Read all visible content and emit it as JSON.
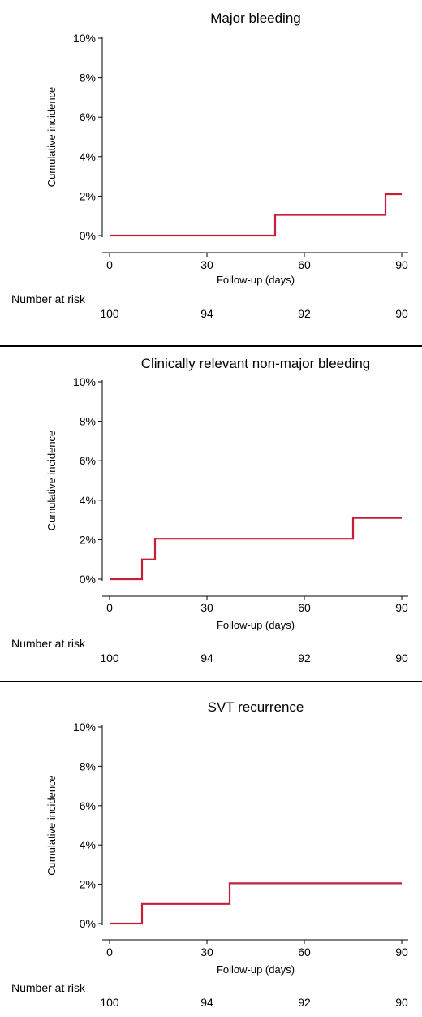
{
  "chart_data": [
    {
      "type": "line",
      "title": "Major bleeding",
      "xlabel": "Follow-up (days)",
      "ylabel": "Cumulative incidence",
      "xlim": [
        0,
        90
      ],
      "ylim": [
        0,
        10
      ],
      "x_ticks": [
        "0",
        "30",
        "60",
        "90"
      ],
      "y_ticks": [
        "0%",
        "2%",
        "4%",
        "6%",
        "8%",
        "10%"
      ],
      "grid": false,
      "series": [
        {
          "color": "#c41e3a",
          "step": true,
          "x": [
            0,
            51,
            51,
            85,
            85,
            90
          ],
          "y": [
            0,
            0,
            1.05,
            1.05,
            2.1,
            2.1
          ]
        }
      ],
      "risk_table": {
        "label": "Number at risk",
        "values": [
          "100",
          "94",
          "92",
          "90"
        ]
      }
    },
    {
      "type": "line",
      "title": "Clinically relevant non-major bleeding",
      "xlabel": "Follow-up (days)",
      "ylabel": "Cumulative incidence",
      "xlim": [
        0,
        90
      ],
      "ylim": [
        0,
        10
      ],
      "x_ticks": [
        "0",
        "30",
        "60",
        "90"
      ],
      "y_ticks": [
        "0%",
        "2%",
        "4%",
        "6%",
        "8%",
        "10%"
      ],
      "grid": false,
      "series": [
        {
          "color": "#c41e3a",
          "step": true,
          "x": [
            0,
            10,
            10,
            14,
            14,
            75,
            75,
            90
          ],
          "y": [
            0,
            0,
            1,
            1,
            2.05,
            2.05,
            3.1,
            3.1
          ]
        }
      ],
      "risk_table": {
        "label": "Number at risk",
        "values": [
          "100",
          "94",
          "92",
          "90"
        ]
      }
    },
    {
      "type": "line",
      "title": "SVT recurrence",
      "xlabel": "Follow-up (days)",
      "ylabel": "Cumulative incidence",
      "xlim": [
        0,
        90
      ],
      "ylim": [
        0,
        10
      ],
      "x_ticks": [
        "0",
        "30",
        "60",
        "90"
      ],
      "y_ticks": [
        "0%",
        "2%",
        "4%",
        "6%",
        "8%",
        "10%"
      ],
      "grid": false,
      "series": [
        {
          "color": "#c41e3a",
          "step": true,
          "x": [
            0,
            10,
            10,
            37,
            37,
            90
          ],
          "y": [
            0,
            0,
            1,
            1,
            2.05,
            2.05
          ]
        }
      ],
      "risk_table": {
        "label": "Number at risk",
        "values": [
          "100",
          "94",
          "92",
          "90"
        ]
      }
    }
  ]
}
